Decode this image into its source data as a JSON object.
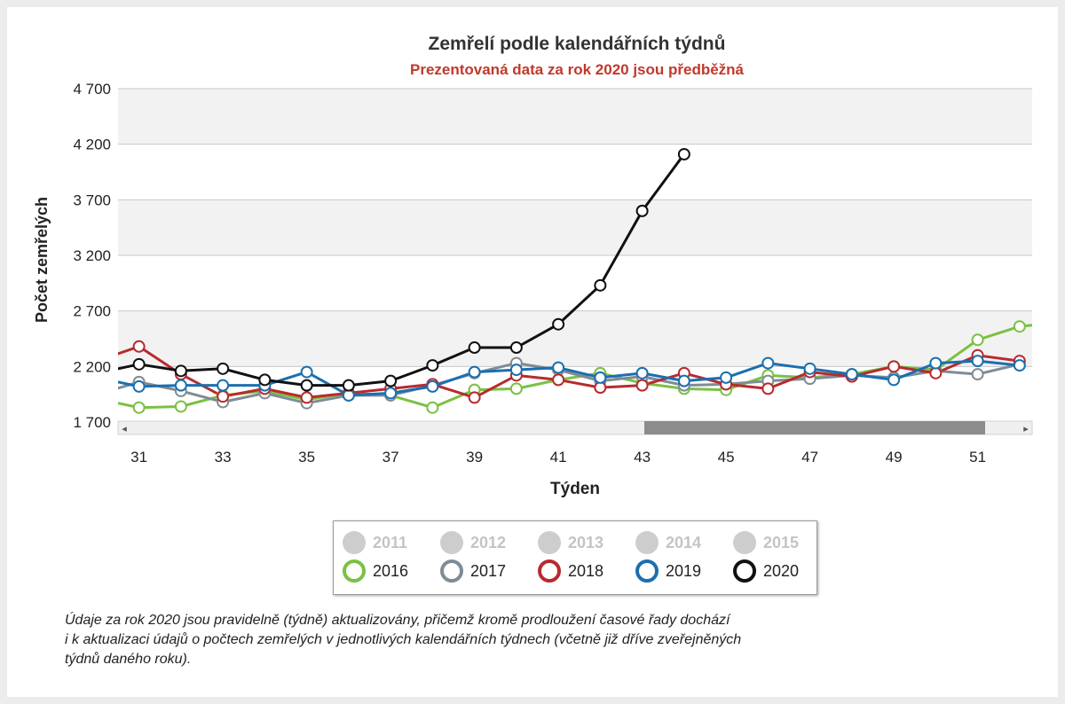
{
  "chart_data": {
    "type": "line",
    "title": "Zemřelí podle kalendářních týdnů",
    "subtitle": "Prezentovaná data za rok 2020 jsou předběžná",
    "xlabel": "Týden",
    "ylabel": "Počet zemřelých",
    "x_visible_range": [
      30.5,
      52.3
    ],
    "x_ticks": [
      31,
      33,
      35,
      37,
      39,
      41,
      43,
      45,
      47,
      49,
      51
    ],
    "ylim": [
      1700,
      4700
    ],
    "y_ticks": [
      1700,
      2200,
      2700,
      3200,
      3700,
      4200,
      4700
    ],
    "y_tick_labels": [
      "1 700",
      "2 200",
      "2 700",
      "3 200",
      "3 700",
      "4 200",
      "4 700"
    ],
    "grid": true,
    "legend_position": "bottom",
    "series": [
      {
        "name": "2016",
        "color": "#7ac143",
        "active": true,
        "x": [
          30,
          31,
          32,
          33,
          34,
          35,
          36,
          37,
          38,
          39,
          40,
          41,
          42,
          43,
          44,
          45,
          46,
          47,
          48,
          49,
          50,
          51,
          52,
          53
        ],
        "values": [
          1910,
          1830,
          1840,
          1940,
          1980,
          1900,
          1960,
          1940,
          1830,
          1990,
          2000,
          2080,
          2140,
          2050,
          2000,
          1990,
          2120,
          2100,
          2130,
          2200,
          2170,
          2440,
          2560,
          2600
        ]
      },
      {
        "name": "2017",
        "color": "#7f8c95",
        "active": true,
        "x": [
          30,
          31,
          32,
          33,
          34,
          35,
          36,
          37,
          38,
          39,
          40,
          41,
          42,
          43,
          44,
          45,
          46,
          47,
          48,
          49,
          50,
          51,
          52
        ],
        "values": [
          1950,
          2060,
          1980,
          1880,
          1960,
          1870,
          1940,
          1940,
          2030,
          2140,
          2230,
          2170,
          2070,
          2110,
          2030,
          2040,
          2070,
          2090,
          2120,
          2100,
          2160,
          2130,
          2220
        ]
      },
      {
        "name": "2018",
        "color": "#b82a2e",
        "active": true,
        "x": [
          30,
          31,
          32,
          33,
          34,
          35,
          36,
          37,
          38,
          39,
          40,
          41,
          42,
          43,
          44,
          45,
          46,
          47,
          48,
          49,
          50,
          51,
          52
        ],
        "values": [
          2250,
          2380,
          2130,
          1930,
          2000,
          1920,
          1960,
          2000,
          2040,
          1920,
          2120,
          2080,
          2010,
          2030,
          2140,
          2040,
          2000,
          2150,
          2110,
          2200,
          2140,
          2300,
          2250
        ]
      },
      {
        "name": "2019",
        "color": "#1a6fb0",
        "active": true,
        "x": [
          30,
          31,
          32,
          33,
          34,
          35,
          36,
          37,
          38,
          39,
          40,
          41,
          42,
          43,
          44,
          45,
          46,
          47,
          48,
          49,
          50,
          51,
          52
        ],
        "values": [
          2100,
          2020,
          2030,
          2030,
          2030,
          2150,
          1940,
          1960,
          2020,
          2150,
          2170,
          2190,
          2100,
          2140,
          2070,
          2100,
          2230,
          2180,
          2130,
          2080,
          2230,
          2250,
          2210
        ]
      },
      {
        "name": "2020",
        "color": "#111111",
        "active": true,
        "x": [
          30,
          31,
          32,
          33,
          34,
          35,
          36,
          37,
          38,
          39,
          40,
          41,
          42,
          43,
          44
        ],
        "values": [
          2140,
          2220,
          2160,
          2180,
          2080,
          2030,
          2030,
          2070,
          2210,
          2370,
          2370,
          2580,
          2930,
          3600,
          4110
        ]
      }
    ],
    "legend": [
      {
        "label": "2011",
        "active": false
      },
      {
        "label": "2012",
        "active": false
      },
      {
        "label": "2013",
        "active": false
      },
      {
        "label": "2014",
        "active": false
      },
      {
        "label": "2015",
        "active": false
      },
      {
        "label": "2016",
        "active": true,
        "color": "#7ac143"
      },
      {
        "label": "2017",
        "active": true,
        "color": "#7f8c95"
      },
      {
        "label": "2018",
        "active": true,
        "color": "#b82a2e"
      },
      {
        "label": "2019",
        "active": true,
        "color": "#1a6fb0"
      },
      {
        "label": "2020",
        "active": true,
        "color": "#111111"
      }
    ]
  },
  "scroll": {
    "left_arrow": "◂",
    "right_arrow": "▸"
  },
  "note": {
    "line1": "Údaje za rok 2020 jsou pravidelně (týdně) aktualizovány, přičemž kromě prodloužení časové řady dochází",
    "line2": "i k aktualizaci údajů o počtech zemřelých v jednotlivých kalendářních týdnech (včetně již dříve zveřejněných",
    "line3": "týdnů daného roku)."
  }
}
